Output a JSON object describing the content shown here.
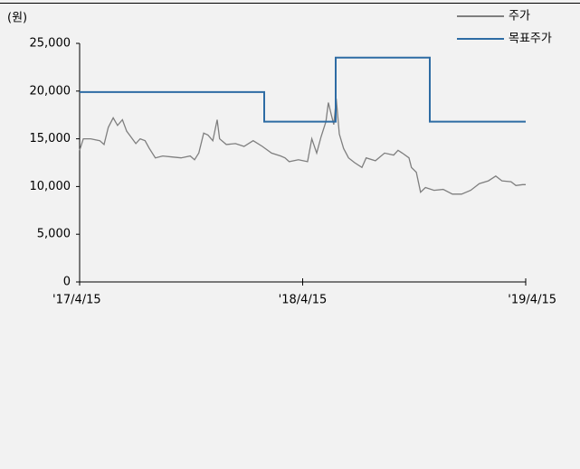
{
  "chart_data": {
    "type": "line",
    "y_label": "(원)",
    "ylim": [
      0,
      25000
    ],
    "yticks": [
      0,
      {
        "value": 5000,
        "label": "5,000"
      },
      {
        "value": 10000,
        "label": "10,000"
      },
      {
        "value": 15000,
        "label": "15,000"
      },
      {
        "value": 20000,
        "label": "20,000"
      },
      {
        "value": 25000,
        "label": "25,000"
      }
    ],
    "xlim": [
      "2017-04-15",
      "2019-04-15"
    ],
    "xticks": [
      {
        "value": "2017-04-15",
        "label": "'17/4/15"
      },
      {
        "value": "2018-04-15",
        "label": "'18/4/15"
      },
      {
        "value": "2019-04-15",
        "label": "'19/4/15"
      }
    ],
    "legend": "top-right",
    "series": [
      {
        "name": "주가",
        "color": "#7f7f7f",
        "x": [
          "2017-04-15",
          "2017-04-21",
          "2017-05-03",
          "2017-05-18",
          "2017-05-25",
          "2017-06-01",
          "2017-06-09",
          "2017-06-16",
          "2017-06-24",
          "2017-07-01",
          "2017-07-08",
          "2017-07-16",
          "2017-07-23",
          "2017-07-31",
          "2017-08-07",
          "2017-08-17",
          "2017-08-29",
          "2017-09-13",
          "2017-09-28",
          "2017-10-13",
          "2017-10-20",
          "2017-10-27",
          "2017-11-04",
          "2017-11-11",
          "2017-11-19",
          "2017-11-26",
          "2017-11-30",
          "2017-12-11",
          "2017-12-26",
          "2018-01-09",
          "2018-01-24",
          "2018-02-08",
          "2018-02-23",
          "2018-03-10",
          "2018-03-17",
          "2018-03-24",
          "2018-04-08",
          "2018-04-23",
          "2018-04-30",
          "2018-05-08",
          "2018-05-15",
          "2018-05-23",
          "2018-05-27",
          "2018-06-01",
          "2018-06-05",
          "2018-06-09",
          "2018-06-14",
          "2018-06-21",
          "2018-06-29",
          "2018-07-09",
          "2018-07-21",
          "2018-07-28",
          "2018-08-12",
          "2018-08-27",
          "2018-09-11",
          "2018-09-18",
          "2018-09-25",
          "2018-10-06",
          "2018-10-10",
          "2018-10-18",
          "2018-10-25",
          "2018-11-02",
          "2018-11-16",
          "2018-12-01",
          "2018-12-16",
          "2018-12-31",
          "2019-01-15",
          "2019-01-29",
          "2019-02-13",
          "2019-02-25",
          "2019-03-07",
          "2019-03-22",
          "2019-03-30",
          "2019-04-10",
          "2019-04-15"
        ],
        "values": [
          13800,
          15000,
          15000,
          14800,
          14400,
          16200,
          17200,
          16400,
          17000,
          15800,
          15200,
          14500,
          15000,
          14800,
          14000,
          13000,
          13200,
          13100,
          13000,
          13200,
          12800,
          13500,
          15600,
          15400,
          14800,
          17000,
          15000,
          14400,
          14500,
          14200,
          14800,
          14200,
          13500,
          13200,
          13000,
          12600,
          12800,
          12600,
          15000,
          13500,
          15200,
          16800,
          18800,
          17500,
          16500,
          19200,
          15500,
          14000,
          13000,
          12500,
          12000,
          13000,
          12700,
          13500,
          13300,
          13800,
          13500,
          13000,
          12000,
          11500,
          9400,
          9900,
          9600,
          9700,
          9200,
          9200,
          9600,
          10300,
          10600,
          11100,
          10600,
          10500,
          10100,
          10200,
          10200
        ]
      },
      {
        "name": "목표주가",
        "color": "#2e6ca4",
        "x": [
          "2017-04-15",
          "2018-02-11",
          "2018-02-11",
          "2018-06-08",
          "2018-06-08",
          "2018-11-09",
          "2018-11-09",
          "2019-04-15"
        ],
        "values": [
          19900,
          19900,
          16800,
          16800,
          23500,
          23500,
          16800,
          16800
        ]
      }
    ]
  }
}
